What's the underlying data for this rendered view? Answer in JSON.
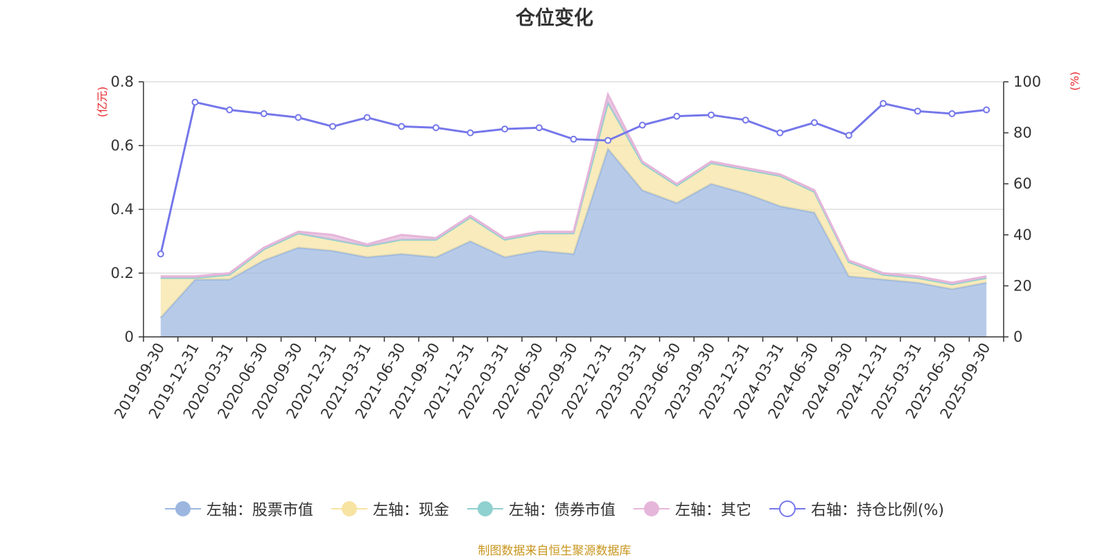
{
  "chart_data": {
    "type": "area",
    "title": "仓位变化",
    "left_axis_unit": "(亿元)",
    "right_axis_unit": "(%)",
    "y_left_lim": [
      0,
      0.8
    ],
    "y_left_ticks": [
      "0",
      "0.2",
      "0.4",
      "0.6",
      "0.8"
    ],
    "y_right_lim": [
      0,
      100
    ],
    "y_right_ticks": [
      "0",
      "20",
      "40",
      "60",
      "80",
      "100"
    ],
    "grid": true,
    "legend_position": "bottom",
    "categories": [
      "2019-09-30",
      "2019-12-31",
      "2020-03-31",
      "2020-06-30",
      "2020-09-30",
      "2020-12-31",
      "2021-03-31",
      "2021-06-30",
      "2021-09-30",
      "2021-12-31",
      "2022-03-31",
      "2022-06-30",
      "2022-09-30",
      "2022-12-31",
      "2023-03-31",
      "2023-06-30",
      "2023-09-30",
      "2023-12-31",
      "2024-03-31",
      "2024-06-30",
      "2024-09-30",
      "2024-12-31",
      "2025-03-31",
      "2025-06-30",
      "2025-09-30"
    ],
    "series": [
      {
        "name": "左轴：股票市值",
        "axis": "left",
        "stack": true,
        "color": "#9bb7e0",
        "values": [
          0.06,
          0.18,
          0.18,
          0.24,
          0.28,
          0.27,
          0.25,
          0.26,
          0.25,
          0.3,
          0.25,
          0.27,
          0.26,
          0.59,
          0.46,
          0.42,
          0.48,
          0.45,
          0.41,
          0.39,
          0.19,
          0.18,
          0.17,
          0.15,
          0.17
        ]
      },
      {
        "name": "左轴：现金",
        "axis": "left",
        "stack": true,
        "color": "#f7e3a2",
        "values": [
          0.125,
          0.005,
          0.015,
          0.035,
          0.045,
          0.035,
          0.035,
          0.045,
          0.055,
          0.075,
          0.055,
          0.055,
          0.065,
          0.145,
          0.085,
          0.055,
          0.065,
          0.075,
          0.095,
          0.065,
          0.045,
          0.015,
          0.015,
          0.015,
          0.015
        ]
      },
      {
        "name": "左轴：债券市值",
        "axis": "left",
        "stack": true,
        "color": "#8fd1d0",
        "values": [
          0,
          0,
          0,
          0,
          0,
          0,
          0,
          0,
          0,
          0,
          0,
          0,
          0,
          0,
          0,
          0,
          0,
          0,
          0,
          0,
          0,
          0,
          0,
          0,
          0
        ]
      },
      {
        "name": "左轴：其它",
        "axis": "left",
        "stack": true,
        "color": "#e6b6da",
        "values": [
          0.005,
          0.005,
          0.005,
          0.005,
          0.005,
          0.015,
          0.005,
          0.015,
          0.005,
          0.005,
          0.005,
          0.005,
          0.005,
          0.025,
          0.005,
          0.005,
          0.005,
          0.005,
          0.005,
          0.005,
          0.005,
          0.005,
          0.005,
          0.005,
          0.005
        ]
      },
      {
        "name": "右轴：持仓比例(%)",
        "axis": "right",
        "stack": false,
        "color": "#7577ea",
        "values": [
          32.5,
          92,
          89,
          87.5,
          86,
          82.5,
          86,
          82.5,
          82,
          80,
          81.5,
          82,
          77.5,
          77,
          83,
          86.5,
          87,
          85,
          80,
          84,
          79,
          91.5,
          88.5,
          87.5,
          89
        ]
      }
    ]
  },
  "source_note": "制图数据来自恒生聚源数据库"
}
